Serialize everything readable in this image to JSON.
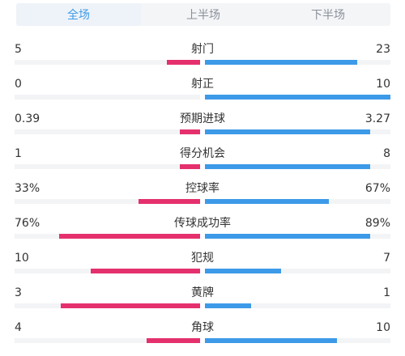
{
  "tabs": [
    {
      "label": "全场",
      "active": true
    },
    {
      "label": "上半场",
      "active": false
    },
    {
      "label": "下半场",
      "active": false
    }
  ],
  "colors": {
    "home": "#e5306e",
    "away": "#3d9ae8",
    "accent": "#3d9ae8"
  },
  "stats": [
    {
      "label": "射门",
      "home": "5",
      "away": "23",
      "home_frac": 0.18,
      "away_frac": 0.82
    },
    {
      "label": "射正",
      "home": "0",
      "away": "10",
      "home_frac": 0.0,
      "away_frac": 1.0
    },
    {
      "label": "预期进球",
      "home": "0.39",
      "away": "3.27",
      "home_frac": 0.11,
      "away_frac": 0.89
    },
    {
      "label": "得分机会",
      "home": "1",
      "away": "8",
      "home_frac": 0.11,
      "away_frac": 0.89
    },
    {
      "label": "控球率",
      "home": "33%",
      "away": "67%",
      "home_frac": 0.33,
      "away_frac": 0.67
    },
    {
      "label": "传球成功率",
      "home": "76%",
      "away": "89%",
      "home_frac": 0.76,
      "away_frac": 0.89
    },
    {
      "label": "犯规",
      "home": "10",
      "away": "7",
      "home_frac": 0.59,
      "away_frac": 0.41
    },
    {
      "label": "黄牌",
      "home": "3",
      "away": "1",
      "home_frac": 0.75,
      "away_frac": 0.25
    },
    {
      "label": "角球",
      "home": "4",
      "away": "10",
      "home_frac": 0.29,
      "away_frac": 0.71
    }
  ]
}
